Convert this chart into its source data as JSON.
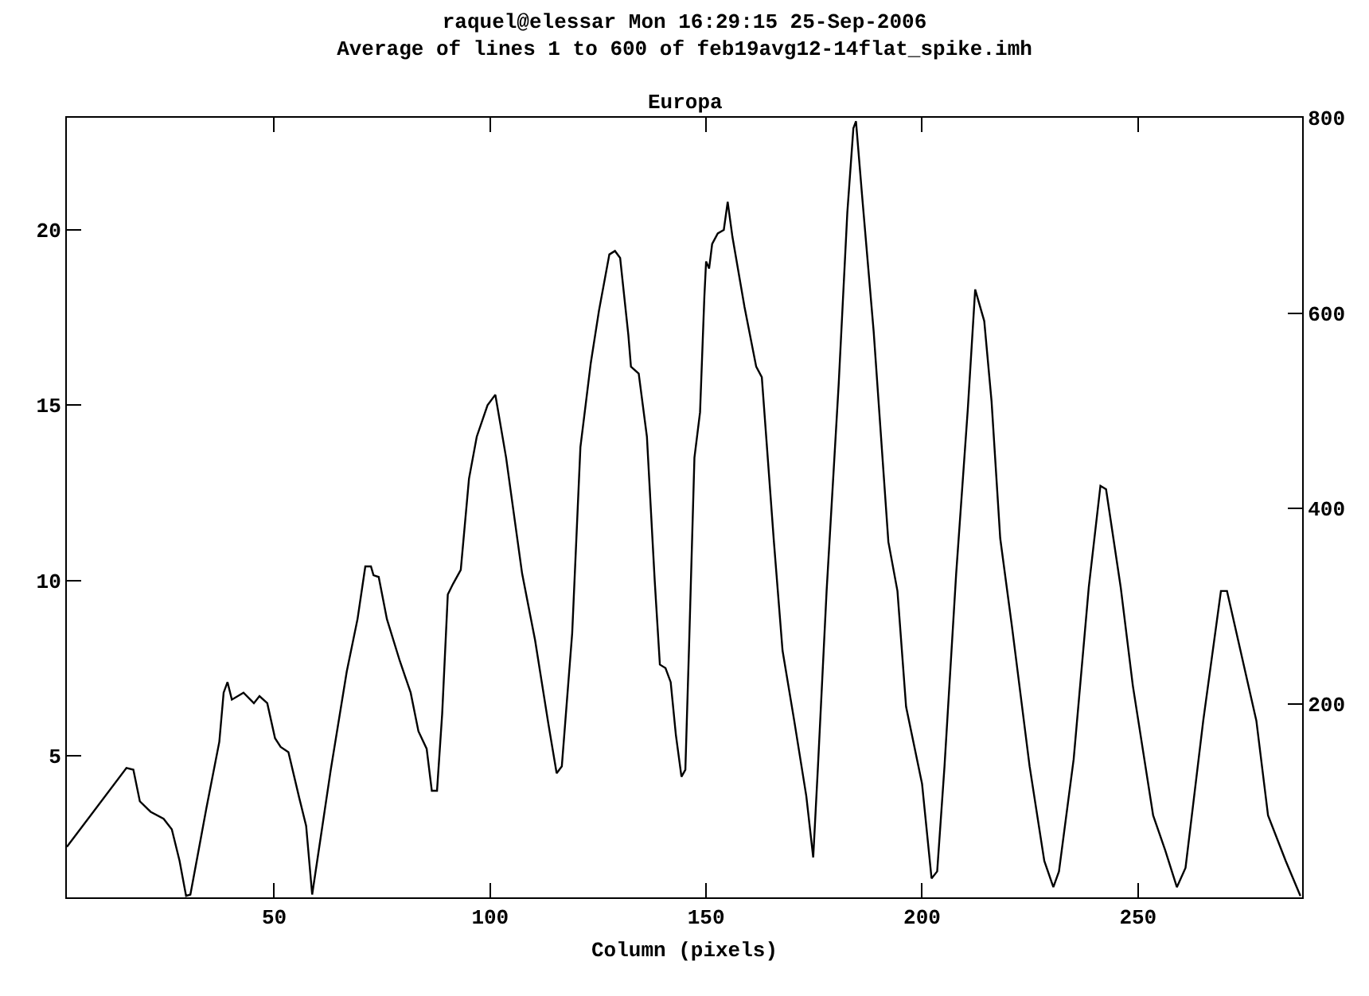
{
  "chart_data": {
    "type": "line",
    "title": "raquel@elessar Mon 16:29:15 25-Sep-2006",
    "subtitle": "Average of lines 1 to 600 of feb19avg12-14flat_spike.imh",
    "annotations": [
      "Europa"
    ],
    "xlabel": "Column (pixels)",
    "x": [
      2,
      15.8,
      17.4,
      18.9,
      21.4,
      24.4,
      26.3,
      28.1,
      29.6,
      30.6,
      34.3,
      37.3,
      38.3,
      39.2,
      40.2,
      42.9,
      45.3,
      46.6,
      48.4,
      50.2,
      51.5,
      53.3,
      55.8,
      57.4,
      58.8,
      63.1,
      66.8,
      69.3,
      71.1,
      72.4,
      73,
      74.2,
      76.1,
      79.1,
      81.6,
      83.4,
      85.3,
      86.5,
      87.7,
      88.9,
      90.2,
      91.4,
      93.2,
      95.1,
      96.9,
      99.4,
      101.2,
      103.7,
      107.4,
      110.4,
      113.5,
      115.4,
      116.6,
      119,
      120.9,
      123.3,
      125.2,
      127.6,
      128.9,
      130.1,
      132,
      132.6,
      134.4,
      136.3,
      138.1,
      139.3,
      140.6,
      141.8,
      143,
      144.3,
      145.2,
      146.1,
      147.3,
      148.6,
      149.6,
      150,
      150.7,
      151.4,
      152.7,
      154.1,
      155,
      156.1,
      158.9,
      161.6,
      162.9,
      165.7,
      167.7,
      170.4,
      173.2,
      174.8,
      175.9,
      177.9,
      180.7,
      182.7,
      184.1,
      184.7,
      186.1,
      188.8,
      192.2,
      194.3,
      196.3,
      200,
      202.2,
      203.5,
      205.2,
      207.9,
      210.6,
      212.3,
      214.4,
      216.1,
      218.1,
      220.8,
      224.9,
      228.3,
      230.4,
      231.7,
      235.1,
      238.6,
      241.3,
      242.6,
      246,
      248.8,
      253.5,
      256.3,
      259,
      261,
      265.1,
      269.2,
      270.6,
      277.4,
      280.1,
      284.2,
      287.6
    ],
    "series": [
      {
        "color": "#000000",
        "values": [
          2.4,
          4.65,
          4.6,
          3.7,
          3.4,
          3.2,
          2.9,
          2.0,
          1.0,
          1.04,
          3.5,
          5.4,
          6.8,
          7.1,
          6.6,
          6.8,
          6.5,
          6.7,
          6.5,
          5.5,
          5.25,
          5.1,
          3.8,
          3.0,
          1.04,
          4.6,
          7.4,
          8.9,
          10.4,
          10.4,
          10.15,
          10.1,
          8.9,
          7.7,
          6.8,
          5.7,
          5.2,
          4.0,
          4.0,
          6.2,
          9.6,
          9.9,
          10.3,
          12.9,
          14.1,
          15.0,
          15.3,
          13.5,
          10.2,
          8.3,
          5.9,
          4.5,
          4.7,
          8.5,
          13.8,
          16.2,
          17.7,
          19.3,
          19.4,
          19.2,
          17.0,
          16.1,
          15.9,
          14.1,
          10.0,
          7.6,
          7.5,
          7.1,
          5.6,
          4.4,
          4.6,
          8.3,
          13.5,
          14.8,
          18.1,
          19.1,
          18.9,
          19.6,
          19.9,
          20.0,
          20.8,
          19.8,
          17.8,
          16.1,
          15.8,
          11.1,
          8.0,
          6.0,
          3.85,
          2.1,
          4.7,
          9.7,
          15.6,
          20.5,
          22.9,
          23.1,
          21.0,
          17.1,
          11.1,
          9.7,
          6.4,
          4.2,
          1.5,
          1.7,
          4.7,
          10.2,
          14.9,
          18.3,
          17.4,
          15.1,
          11.2,
          8.7,
          4.7,
          2.0,
          1.25,
          1.7,
          4.9,
          9.8,
          12.7,
          12.6,
          9.8,
          7.0,
          3.3,
          2.3,
          1.25,
          1.8,
          6.0,
          9.7,
          9.7,
          6.0,
          3.3,
          2.0,
          1.0
        ]
      }
    ],
    "xlim": [
      2,
      288
    ],
    "xticks": [
      50,
      100,
      150,
      200,
      250
    ],
    "ylim": [
      0.96,
      23.2
    ],
    "yticks": [
      5,
      10,
      15,
      20
    ],
    "y2lim": [
      2,
      800
    ],
    "y2ticks": [
      200,
      400,
      600,
      800
    ],
    "marker": "none",
    "line_style": "solid"
  }
}
